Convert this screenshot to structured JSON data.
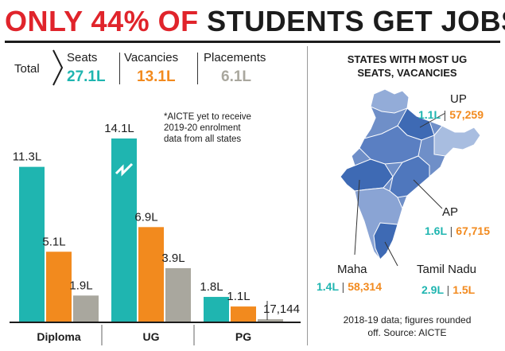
{
  "headline": {
    "part1": "ONLY 44% OF",
    "part2": "STUDENTS GET JOBS"
  },
  "colors": {
    "seats": "#1fb5b0",
    "vacancies": "#f28a1e",
    "placements": "#a9a79e",
    "accent": "#e0242b",
    "text": "#1c1c1c"
  },
  "totals": {
    "label": "Total",
    "items": [
      {
        "name": "Seats",
        "value": "27.1L"
      },
      {
        "name": "Vacancies",
        "value": "13.1L"
      },
      {
        "name": "Placements",
        "value": "6.1L"
      }
    ]
  },
  "note": "*AICTE yet to receive\n2019-20 enrolment\ndata from all states",
  "chart_data": {
    "type": "bar",
    "categories": [
      "Diploma",
      "UG",
      "PG"
    ],
    "series": [
      {
        "name": "Seats",
        "values": [
          11.3,
          14.1,
          1.8
        ],
        "labels": [
          "11.3L",
          "14.1L",
          "1.8L"
        ]
      },
      {
        "name": "Vacancies",
        "values": [
          5.1,
          6.9,
          1.1
        ],
        "labels": [
          "5.1L",
          "6.9L",
          "1.1L"
        ]
      },
      {
        "name": "Placements",
        "values": [
          1.9,
          3.9,
          0.17144
        ],
        "labels": [
          "1.9L",
          "3.9L",
          "17,144"
        ]
      }
    ],
    "unit": "lakh",
    "axis_break": {
      "category": "UG",
      "series": "Seats"
    },
    "ylim": [
      0,
      14.1
    ],
    "grid": false,
    "legend": "top"
  },
  "map": {
    "title": "STATES WITH MOST UG\nSEATS, VACANCIES",
    "states": [
      {
        "name": "UP",
        "seats": "1.1L",
        "vacancies": "57,259"
      },
      {
        "name": "AP",
        "seats": "1.6L",
        "vacancies": "67,715"
      },
      {
        "name": "Maha",
        "seats": "1.4L",
        "vacancies": "58,314"
      },
      {
        "name": "Tamil Nadu",
        "seats": "2.9L",
        "vacancies": "1.5L"
      }
    ],
    "source": "2018-19 data; figures rounded\noff. Source: AICTE"
  }
}
